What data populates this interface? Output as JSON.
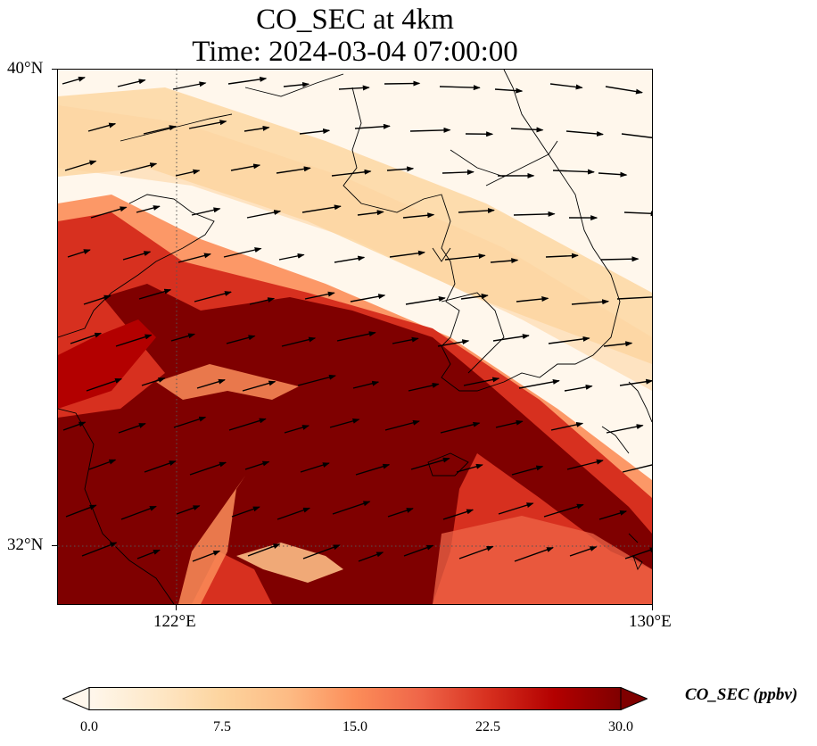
{
  "title": {
    "line1": "CO_SEC at 4km",
    "line2": "Time: 2024-03-04 07:00:00"
  },
  "axes": {
    "lat_labels": [
      "40°N",
      "32°N"
    ],
    "lon_labels": [
      "122°E",
      "130°E"
    ]
  },
  "colorbar": {
    "label": "CO_SEC (ppbv)",
    "ticks": [
      "0.0",
      "7.5",
      "15.0",
      "22.5",
      "30.0"
    ],
    "min": 0,
    "max": 30,
    "extend": "both",
    "colormap": "OrRd"
  },
  "colors": {
    "low": "#fff7ec",
    "mid": "#fc8d59",
    "high": "#7f0000",
    "arrow": "#000000",
    "coastline": "#000000",
    "gridline": "#555555"
  }
}
